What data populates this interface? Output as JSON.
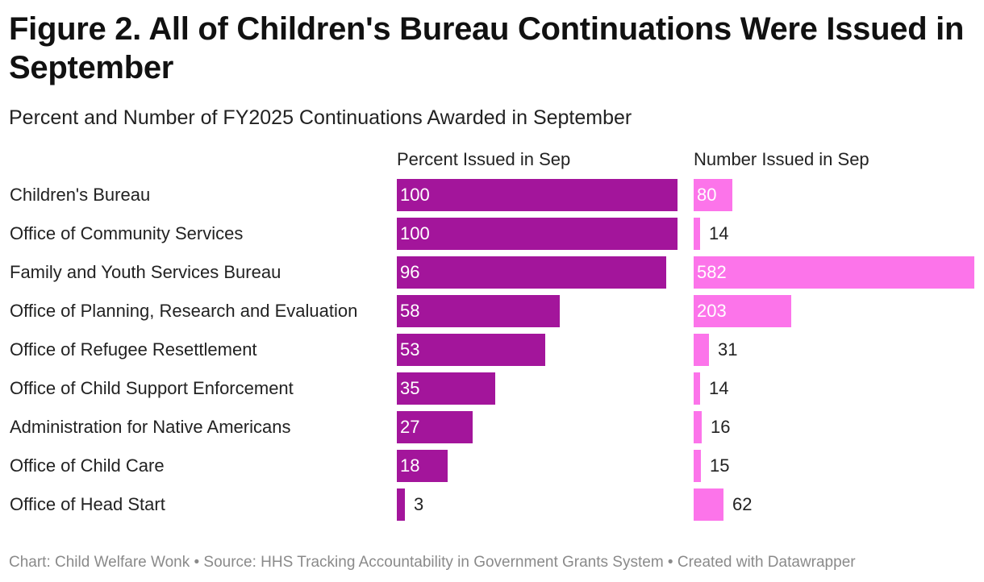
{
  "title": "Figure 2. All of Children's Bureau Continuations Were Issued in September",
  "subtitle": "Percent and Number of FY2025 Continuations Awarded in September",
  "footer": "Chart: Child Welfare Wonk • Source: HHS Tracking Accountability in Government Grants System • Created with Datawrapper",
  "colors": {
    "percent_bar": "#a3159b",
    "number_bar": "#fc74ea"
  },
  "chart_data": {
    "type": "bar",
    "orientation": "horizontal",
    "categories": [
      "Children's Bureau",
      "Office of Community Services",
      "Family and Youth Services Bureau",
      "Office of Planning, Research and Evaluation",
      "Office of Refugee Resettlement",
      "Office of Child Support Enforcement",
      "Administration for Native Americans",
      "Office of Child Care",
      "Office of Head Start"
    ],
    "series": [
      {
        "name": "Percent Issued in Sep",
        "values": [
          100,
          100,
          96,
          58,
          53,
          35,
          27,
          18,
          3
        ],
        "xlim": [
          0,
          100
        ]
      },
      {
        "name": "Number Issued in Sep",
        "values": [
          80,
          14,
          582,
          203,
          31,
          14,
          16,
          15,
          62
        ],
        "xlim": [
          0,
          582
        ]
      }
    ],
    "title": "Figure 2. All of Children's Bureau Continuations Were Issued in September",
    "subtitle": "Percent and Number of FY2025 Continuations Awarded in September",
    "xlabel": "",
    "ylabel": "",
    "grid": false,
    "legend": "none"
  }
}
